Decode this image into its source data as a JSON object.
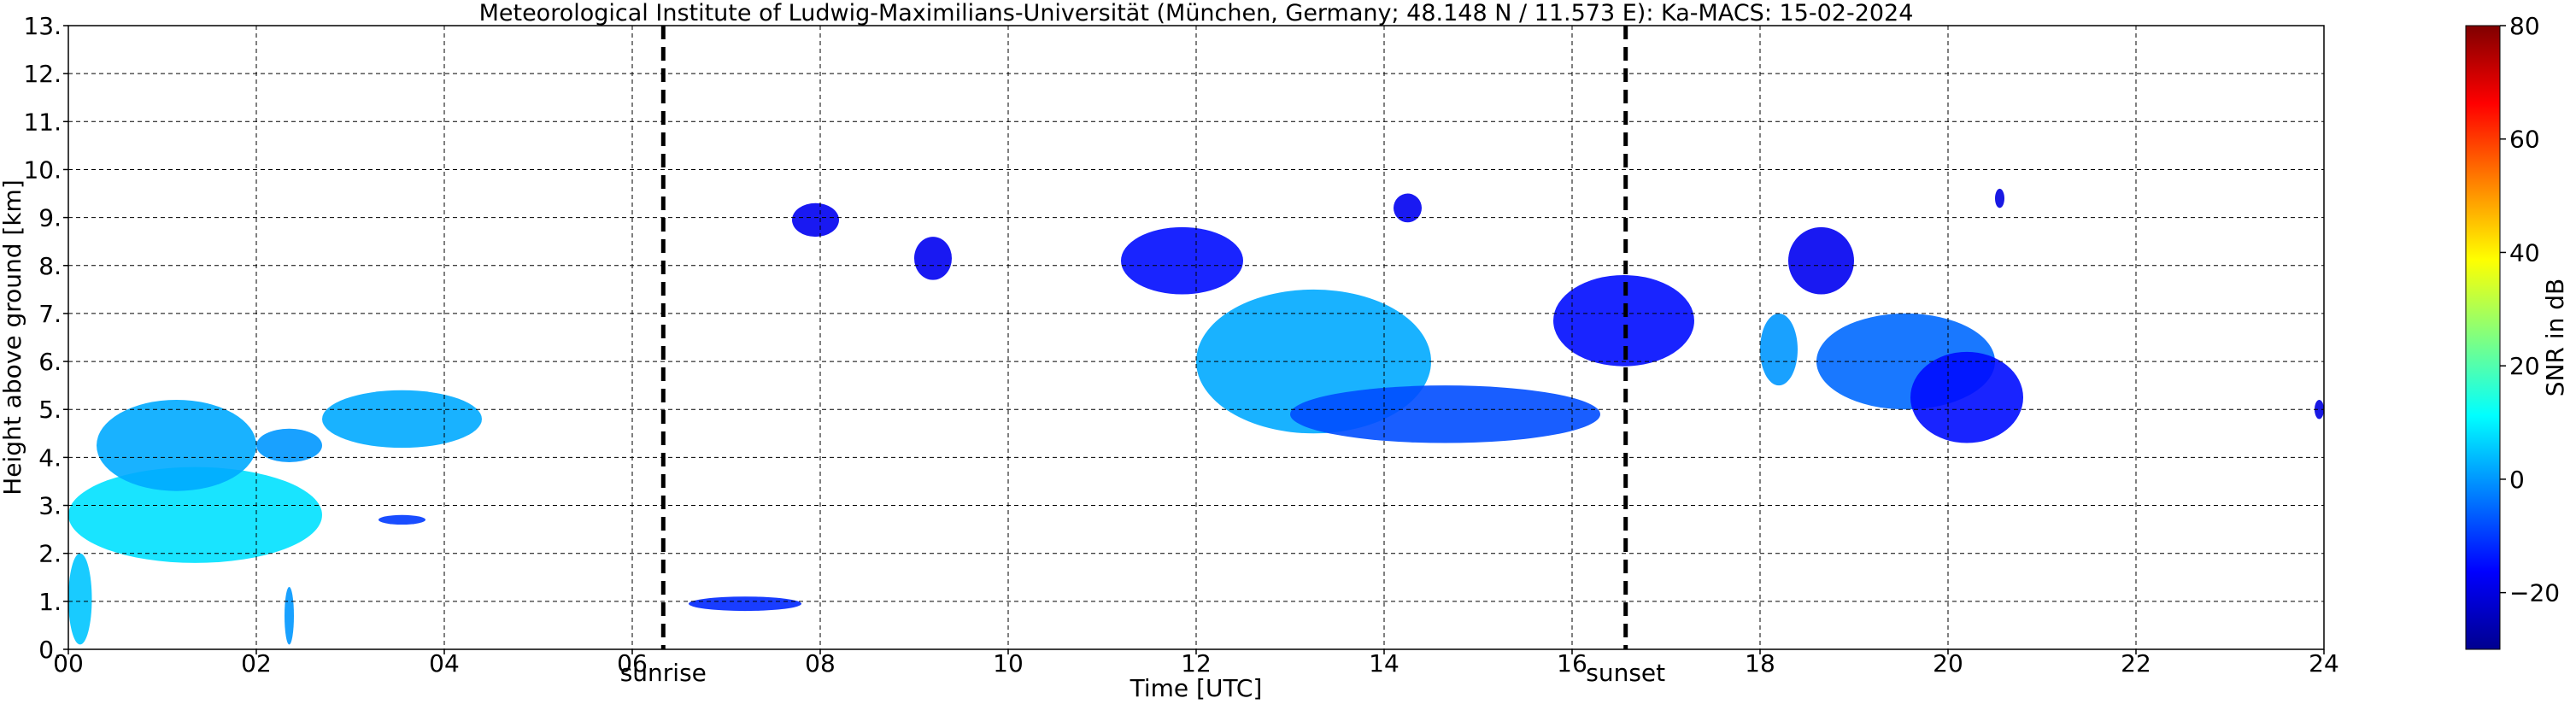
{
  "chart_data": {
    "type": "heatmap",
    "title": "Meteorological Institute of Ludwig-Maximilians-Universität (München, Germany; 48.148 N / 11.573 E):    Ka-MACS: 15-02-2024",
    "xlabel": "Time [UTC]",
    "ylabel": "Height above ground [km]",
    "xlim": [
      0,
      24
    ],
    "ylim": [
      0,
      13
    ],
    "x_ticks": [
      "00",
      "02",
      "04",
      "06",
      "08",
      "10",
      "12",
      "14",
      "16",
      "18",
      "20",
      "22",
      "24"
    ],
    "y_ticks": [
      "0.",
      "1.",
      "2.",
      "3.",
      "4.",
      "5.",
      "6.",
      "7.",
      "8.",
      "9.",
      "10.",
      "11.",
      "12.",
      "13."
    ],
    "grid": true,
    "markers": [
      {
        "label": "sunrise",
        "x": 6.33
      },
      {
        "label": "sunset",
        "x": 16.57
      }
    ],
    "colorbar": {
      "label": "SNR in dB",
      "range": [
        -30,
        80
      ],
      "ticks": [
        "80",
        "60",
        "40",
        "20",
        "0",
        "−20"
      ],
      "tick_values": [
        80,
        60,
        40,
        20,
        0,
        -20
      ],
      "colors": [
        "#00008f",
        "#0000ff",
        "#0080ff",
        "#00ffff",
        "#80ff80",
        "#ffff00",
        "#ff8000",
        "#ff0000",
        "#800000"
      ]
    },
    "echoes": [
      {
        "t": [
          0.0,
          2.7
        ],
        "h": [
          1.8,
          3.8
        ],
        "snr": 8
      },
      {
        "t": [
          0.0,
          0.25
        ],
        "h": [
          0.1,
          2.0
        ],
        "snr": 5
      },
      {
        "t": [
          0.3,
          2.0
        ],
        "h": [
          3.3,
          5.2
        ],
        "snr": 2
      },
      {
        "t": [
          2.0,
          2.7
        ],
        "h": [
          3.9,
          4.6
        ],
        "snr": 0
      },
      {
        "t": [
          2.7,
          4.4
        ],
        "h": [
          4.2,
          5.4
        ],
        "snr": 2
      },
      {
        "t": [
          2.3,
          2.4
        ],
        "h": [
          0.1,
          1.3
        ],
        "snr": 0
      },
      {
        "t": [
          3.3,
          3.8
        ],
        "h": [
          2.6,
          2.8
        ],
        "snr": -10
      },
      {
        "t": [
          6.6,
          7.8
        ],
        "h": [
          0.8,
          1.1
        ],
        "snr": -12
      },
      {
        "t": [
          7.7,
          8.2
        ],
        "h": [
          8.6,
          9.3
        ],
        "snr": -18
      },
      {
        "t": [
          9.0,
          9.4
        ],
        "h": [
          7.7,
          8.6
        ],
        "snr": -18
      },
      {
        "t": [
          11.2,
          12.5
        ],
        "h": [
          7.4,
          8.8
        ],
        "snr": -15
      },
      {
        "t": [
          12.0,
          14.5
        ],
        "h": [
          4.5,
          7.5
        ],
        "snr": 2
      },
      {
        "t": [
          13.0,
          16.3
        ],
        "h": [
          4.3,
          5.5
        ],
        "snr": -8
      },
      {
        "t": [
          14.1,
          14.4
        ],
        "h": [
          8.9,
          9.5
        ],
        "snr": -18
      },
      {
        "t": [
          15.8,
          17.3
        ],
        "h": [
          5.9,
          7.8
        ],
        "snr": -15
      },
      {
        "t": [
          18.0,
          18.4
        ],
        "h": [
          5.5,
          7.0
        ],
        "snr": 0
      },
      {
        "t": [
          18.6,
          20.5
        ],
        "h": [
          5.0,
          7.0
        ],
        "snr": -5
      },
      {
        "t": [
          19.6,
          20.8
        ],
        "h": [
          4.3,
          6.2
        ],
        "snr": -15
      },
      {
        "t": [
          18.3,
          19.0
        ],
        "h": [
          7.4,
          8.8
        ],
        "snr": -18
      },
      {
        "t": [
          20.5,
          20.6
        ],
        "h": [
          9.2,
          9.6
        ],
        "snr": -20
      },
      {
        "t": [
          23.9,
          24.0
        ],
        "h": [
          4.8,
          5.2
        ],
        "snr": -20
      }
    ]
  }
}
